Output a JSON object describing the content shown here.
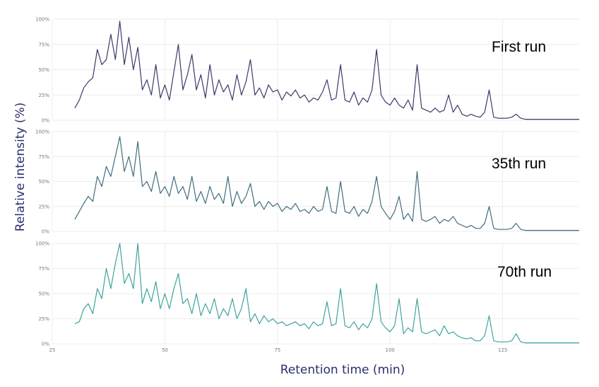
{
  "chart_data": {
    "type": "line",
    "xlabel": "Retention time (min)",
    "ylabel": "Relative intensity (%)",
    "x_ticks": [
      "25",
      "50",
      "75",
      "100",
      "125"
    ],
    "y_ticks": [
      "0%",
      "25%",
      "50%",
      "75%",
      "100%"
    ],
    "xlim": [
      25,
      142
    ],
    "ylim": [
      0,
      100
    ],
    "grid": true,
    "panels": [
      {
        "label": "First run",
        "color": "#3a3a6b",
        "points": [
          [
            30,
            12
          ],
          [
            31,
            20
          ],
          [
            32,
            32
          ],
          [
            33,
            38
          ],
          [
            34,
            42
          ],
          [
            35,
            70
          ],
          [
            36,
            55
          ],
          [
            37,
            60
          ],
          [
            38,
            85
          ],
          [
            39,
            60
          ],
          [
            40,
            98
          ],
          [
            41,
            55
          ],
          [
            42,
            82
          ],
          [
            43,
            50
          ],
          [
            44,
            72
          ],
          [
            45,
            30
          ],
          [
            46,
            40
          ],
          [
            47,
            25
          ],
          [
            48,
            55
          ],
          [
            49,
            22
          ],
          [
            50,
            35
          ],
          [
            51,
            20
          ],
          [
            52,
            48
          ],
          [
            53,
            75
          ],
          [
            54,
            30
          ],
          [
            55,
            45
          ],
          [
            56,
            65
          ],
          [
            57,
            30
          ],
          [
            58,
            45
          ],
          [
            59,
            22
          ],
          [
            60,
            55
          ],
          [
            61,
            25
          ],
          [
            62,
            40
          ],
          [
            63,
            28
          ],
          [
            64,
            35
          ],
          [
            65,
            20
          ],
          [
            66,
            45
          ],
          [
            67,
            25
          ],
          [
            68,
            38
          ],
          [
            69,
            60
          ],
          [
            70,
            25
          ],
          [
            71,
            32
          ],
          [
            72,
            22
          ],
          [
            73,
            35
          ],
          [
            74,
            28
          ],
          [
            75,
            30
          ],
          [
            76,
            20
          ],
          [
            77,
            28
          ],
          [
            78,
            24
          ],
          [
            79,
            30
          ],
          [
            80,
            22
          ],
          [
            81,
            25
          ],
          [
            82,
            18
          ],
          [
            83,
            22
          ],
          [
            84,
            20
          ],
          [
            85,
            28
          ],
          [
            86,
            40
          ],
          [
            87,
            20
          ],
          [
            88,
            22
          ],
          [
            89,
            55
          ],
          [
            90,
            20
          ],
          [
            91,
            18
          ],
          [
            92,
            28
          ],
          [
            93,
            15
          ],
          [
            94,
            22
          ],
          [
            95,
            18
          ],
          [
            96,
            30
          ],
          [
            97,
            70
          ],
          [
            98,
            25
          ],
          [
            99,
            18
          ],
          [
            100,
            15
          ],
          [
            101,
            22
          ],
          [
            102,
            15
          ],
          [
            103,
            12
          ],
          [
            104,
            20
          ],
          [
            105,
            10
          ],
          [
            106,
            55
          ],
          [
            107,
            12
          ],
          [
            108,
            10
          ],
          [
            109,
            8
          ],
          [
            110,
            12
          ],
          [
            111,
            8
          ],
          [
            112,
            10
          ],
          [
            113,
            25
          ],
          [
            114,
            8
          ],
          [
            115,
            15
          ],
          [
            116,
            6
          ],
          [
            117,
            4
          ],
          [
            118,
            6
          ],
          [
            119,
            4
          ],
          [
            120,
            3
          ],
          [
            121,
            8
          ],
          [
            122,
            30
          ],
          [
            123,
            3
          ],
          [
            124,
            2
          ],
          [
            125,
            2
          ],
          [
            126,
            2
          ],
          [
            127,
            3
          ],
          [
            128,
            6
          ],
          [
            129,
            2
          ],
          [
            130,
            1
          ],
          [
            132,
            1
          ],
          [
            135,
            1
          ],
          [
            136,
            1
          ],
          [
            142,
            1
          ]
        ]
      },
      {
        "label": "35th run",
        "color": "#3f6e7e",
        "points": [
          [
            30,
            12
          ],
          [
            31,
            20
          ],
          [
            32,
            28
          ],
          [
            33,
            35
          ],
          [
            34,
            30
          ],
          [
            35,
            55
          ],
          [
            36,
            45
          ],
          [
            37,
            65
          ],
          [
            38,
            55
          ],
          [
            39,
            75
          ],
          [
            40,
            95
          ],
          [
            41,
            60
          ],
          [
            42,
            75
          ],
          [
            43,
            55
          ],
          [
            44,
            90
          ],
          [
            45,
            45
          ],
          [
            46,
            50
          ],
          [
            47,
            40
          ],
          [
            48,
            60
          ],
          [
            49,
            38
          ],
          [
            50,
            45
          ],
          [
            51,
            35
          ],
          [
            52,
            55
          ],
          [
            53,
            38
          ],
          [
            54,
            45
          ],
          [
            55,
            32
          ],
          [
            56,
            55
          ],
          [
            57,
            30
          ],
          [
            58,
            40
          ],
          [
            59,
            28
          ],
          [
            60,
            45
          ],
          [
            61,
            32
          ],
          [
            62,
            38
          ],
          [
            63,
            28
          ],
          [
            64,
            55
          ],
          [
            65,
            25
          ],
          [
            66,
            40
          ],
          [
            67,
            28
          ],
          [
            68,
            35
          ],
          [
            69,
            48
          ],
          [
            70,
            25
          ],
          [
            71,
            30
          ],
          [
            72,
            22
          ],
          [
            73,
            30
          ],
          [
            74,
            25
          ],
          [
            75,
            28
          ],
          [
            76,
            20
          ],
          [
            77,
            25
          ],
          [
            78,
            22
          ],
          [
            79,
            28
          ],
          [
            80,
            20
          ],
          [
            81,
            22
          ],
          [
            82,
            18
          ],
          [
            83,
            25
          ],
          [
            84,
            20
          ],
          [
            85,
            22
          ],
          [
            86,
            45
          ],
          [
            87,
            20
          ],
          [
            88,
            18
          ],
          [
            89,
            50
          ],
          [
            90,
            20
          ],
          [
            91,
            18
          ],
          [
            92,
            25
          ],
          [
            93,
            15
          ],
          [
            94,
            22
          ],
          [
            95,
            18
          ],
          [
            96,
            30
          ],
          [
            97,
            55
          ],
          [
            98,
            25
          ],
          [
            99,
            18
          ],
          [
            100,
            12
          ],
          [
            101,
            20
          ],
          [
            102,
            35
          ],
          [
            103,
            12
          ],
          [
            104,
            18
          ],
          [
            105,
            10
          ],
          [
            106,
            60
          ],
          [
            107,
            12
          ],
          [
            108,
            10
          ],
          [
            109,
            12
          ],
          [
            110,
            15
          ],
          [
            111,
            8
          ],
          [
            112,
            12
          ],
          [
            113,
            10
          ],
          [
            114,
            15
          ],
          [
            115,
            8
          ],
          [
            116,
            6
          ],
          [
            117,
            4
          ],
          [
            118,
            6
          ],
          [
            119,
            3
          ],
          [
            120,
            3
          ],
          [
            121,
            8
          ],
          [
            122,
            25
          ],
          [
            123,
            3
          ],
          [
            124,
            2
          ],
          [
            125,
            2
          ],
          [
            126,
            2
          ],
          [
            127,
            3
          ],
          [
            128,
            8
          ],
          [
            129,
            2
          ],
          [
            130,
            1
          ],
          [
            132,
            1
          ],
          [
            135,
            1
          ],
          [
            136,
            1
          ],
          [
            142,
            1
          ]
        ]
      },
      {
        "label": "70th run",
        "color": "#3fa3a0",
        "points": [
          [
            30,
            20
          ],
          [
            31,
            22
          ],
          [
            32,
            35
          ],
          [
            33,
            40
          ],
          [
            34,
            30
          ],
          [
            35,
            55
          ],
          [
            36,
            45
          ],
          [
            37,
            75
          ],
          [
            38,
            55
          ],
          [
            39,
            80
          ],
          [
            40,
            100
          ],
          [
            41,
            60
          ],
          [
            42,
            70
          ],
          [
            43,
            55
          ],
          [
            44,
            100
          ],
          [
            45,
            40
          ],
          [
            46,
            55
          ],
          [
            47,
            42
          ],
          [
            48,
            62
          ],
          [
            49,
            35
          ],
          [
            50,
            50
          ],
          [
            51,
            35
          ],
          [
            52,
            55
          ],
          [
            53,
            70
          ],
          [
            54,
            40
          ],
          [
            55,
            45
          ],
          [
            56,
            30
          ],
          [
            57,
            50
          ],
          [
            58,
            28
          ],
          [
            59,
            40
          ],
          [
            60,
            30
          ],
          [
            61,
            45
          ],
          [
            62,
            25
          ],
          [
            63,
            35
          ],
          [
            64,
            28
          ],
          [
            65,
            45
          ],
          [
            66,
            25
          ],
          [
            67,
            35
          ],
          [
            68,
            55
          ],
          [
            69,
            22
          ],
          [
            70,
            30
          ],
          [
            71,
            20
          ],
          [
            72,
            28
          ],
          [
            73,
            22
          ],
          [
            74,
            25
          ],
          [
            75,
            20
          ],
          [
            76,
            22
          ],
          [
            77,
            18
          ],
          [
            78,
            20
          ],
          [
            79,
            22
          ],
          [
            80,
            18
          ],
          [
            81,
            20
          ],
          [
            82,
            15
          ],
          [
            83,
            22
          ],
          [
            84,
            18
          ],
          [
            85,
            20
          ],
          [
            86,
            42
          ],
          [
            87,
            18
          ],
          [
            88,
            20
          ],
          [
            89,
            55
          ],
          [
            90,
            18
          ],
          [
            91,
            16
          ],
          [
            92,
            22
          ],
          [
            93,
            14
          ],
          [
            94,
            20
          ],
          [
            95,
            16
          ],
          [
            96,
            25
          ],
          [
            97,
            60
          ],
          [
            98,
            22
          ],
          [
            99,
            16
          ],
          [
            100,
            12
          ],
          [
            101,
            18
          ],
          [
            102,
            45
          ],
          [
            103,
            10
          ],
          [
            104,
            16
          ],
          [
            105,
            12
          ],
          [
            106,
            45
          ],
          [
            107,
            12
          ],
          [
            108,
            10
          ],
          [
            109,
            12
          ],
          [
            110,
            14
          ],
          [
            111,
            8
          ],
          [
            112,
            18
          ],
          [
            113,
            10
          ],
          [
            114,
            12
          ],
          [
            115,
            8
          ],
          [
            116,
            6
          ],
          [
            117,
            5
          ],
          [
            118,
            6
          ],
          [
            119,
            3
          ],
          [
            120,
            3
          ],
          [
            121,
            8
          ],
          [
            122,
            28
          ],
          [
            123,
            3
          ],
          [
            124,
            2
          ],
          [
            125,
            2
          ],
          [
            126,
            2
          ],
          [
            127,
            3
          ],
          [
            128,
            10
          ],
          [
            129,
            2
          ],
          [
            130,
            1
          ],
          [
            132,
            1
          ],
          [
            135,
            1
          ],
          [
            136,
            1
          ],
          [
            142,
            1
          ]
        ]
      }
    ]
  }
}
